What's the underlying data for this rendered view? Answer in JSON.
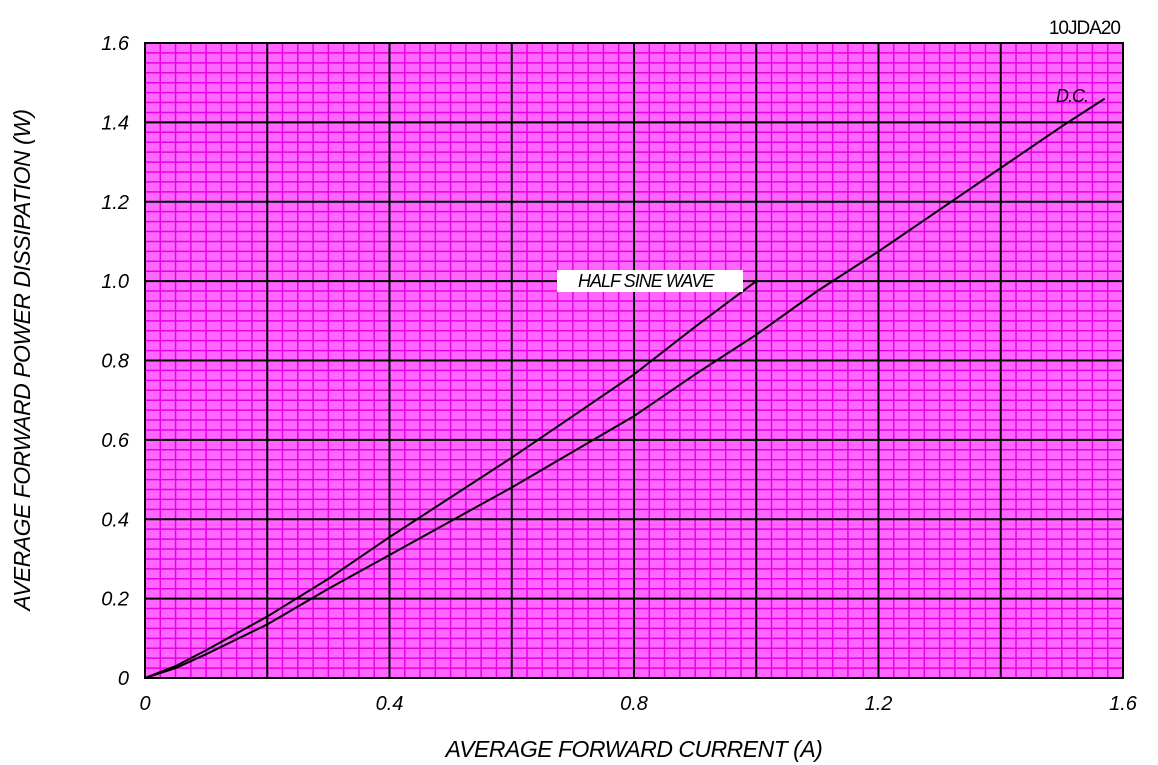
{
  "chart_data": {
    "type": "line",
    "title": "10JDA20",
    "xlabel": "AVERAGE FORWARD CURRENT (A)",
    "ylabel": "AVERAGE FORWARD POWER DISSIPATION (W)",
    "xlim": [
      0,
      1.6
    ],
    "ylim": [
      0,
      1.6
    ],
    "x_ticks": [
      "0",
      "0.4",
      "0.8",
      "1.2",
      "1.6"
    ],
    "y_ticks": [
      "0",
      "0.2",
      "0.4",
      "0.6",
      "0.8",
      "1.0",
      "1.2",
      "1.4",
      "1.6"
    ],
    "grid": true,
    "colors": {
      "minor_grid": "#e600e6",
      "major_grid": "#000000",
      "background": "#ff66ff",
      "curve": "#000000"
    },
    "series": [
      {
        "name": "HALF SINE WAVE",
        "x": [
          0,
          0.05,
          0.1,
          0.2,
          0.3,
          0.4,
          0.5,
          0.6,
          0.7,
          0.8,
          0.9,
          1.0
        ],
        "y": [
          0,
          0.03,
          0.07,
          0.155,
          0.25,
          0.355,
          0.455,
          0.555,
          0.66,
          0.765,
          0.885,
          1.0
        ]
      },
      {
        "name": "D.C.",
        "x": [
          0,
          0.05,
          0.1,
          0.2,
          0.3,
          0.4,
          0.5,
          0.6,
          0.7,
          0.8,
          0.9,
          1.0,
          1.1,
          1.2,
          1.3,
          1.4,
          1.5,
          1.57
        ],
        "y": [
          0,
          0.025,
          0.06,
          0.135,
          0.225,
          0.31,
          0.395,
          0.48,
          0.57,
          0.66,
          0.765,
          0.865,
          0.975,
          1.075,
          1.18,
          1.285,
          1.39,
          1.46
        ]
      }
    ]
  }
}
